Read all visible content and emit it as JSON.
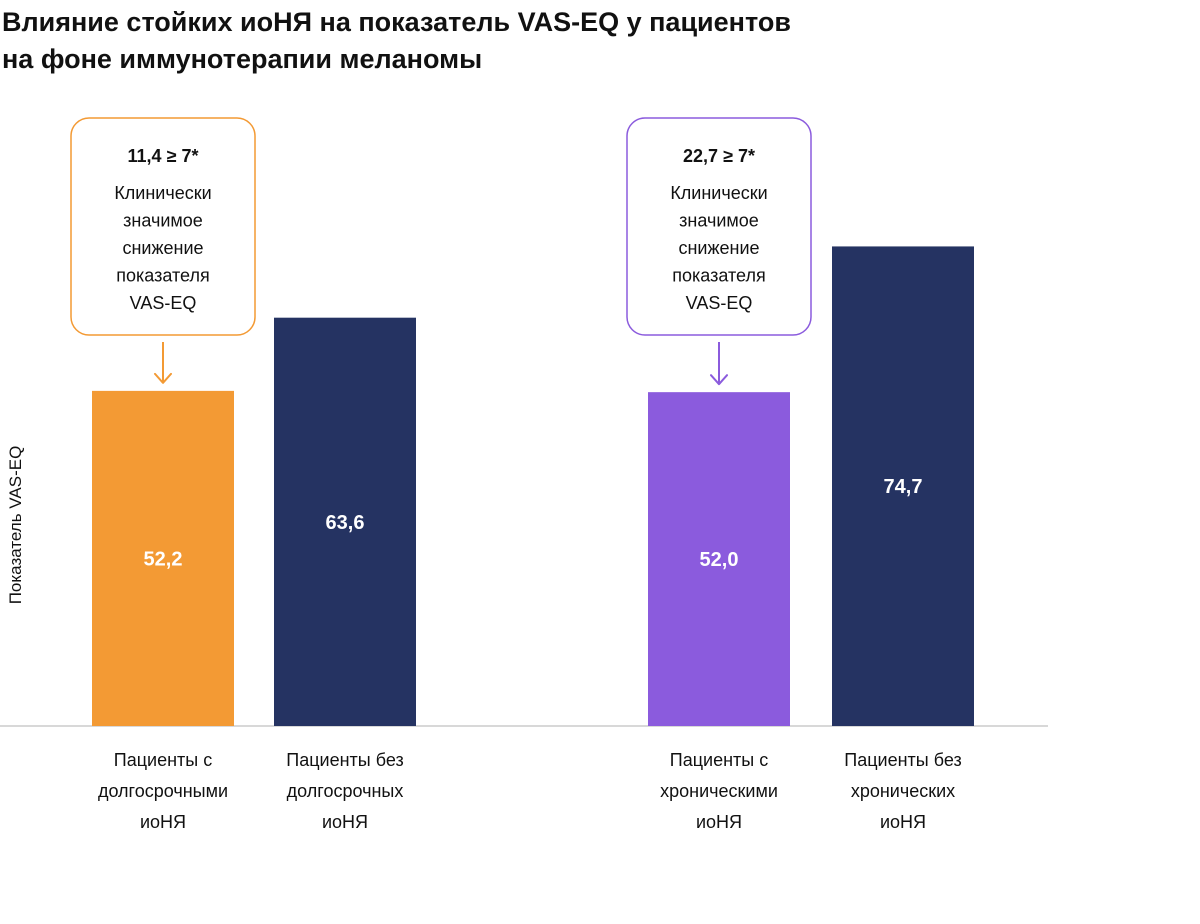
{
  "title_lines": [
    "Влияние стойких иоНЯ на показатель VAS-EQ у пациентов",
    "на фоне иммунотерапии меланомы"
  ],
  "colors": {
    "orange": "#F39A34",
    "purple": "#8B5BDD",
    "navy": "#253362",
    "axis": "#cccccc"
  },
  "chart_data": {
    "type": "bar",
    "ylabel": "Показатель VAS-EQ",
    "ylim": [
      0,
      100
    ],
    "grid": false,
    "bars": [
      {
        "value": 52.2,
        "label": "52,2",
        "color": "#F39A34",
        "category_lines": [
          "Пациенты с",
          "долгосрочными",
          "иоНЯ"
        ]
      },
      {
        "value": 63.6,
        "label": "63,6",
        "color": "#253362",
        "category_lines": [
          "Пациенты без",
          "долгосрочных",
          "иоНЯ"
        ]
      },
      {
        "value": 52.0,
        "label": "52,0",
        "color": "#8B5BDD",
        "category_lines": [
          "Пациенты с",
          "хроническими",
          "иоНЯ"
        ]
      },
      {
        "value": 74.7,
        "label": "74,7",
        "color": "#253362",
        "category_lines": [
          "Пациенты без",
          "хронических",
          "иоНЯ"
        ]
      }
    ],
    "annotations": [
      {
        "target_bar": 0,
        "color": "#F39A34",
        "headline": "11,4 ≥ 7*",
        "text_lines": [
          "Клинически",
          "значимое",
          "снижение",
          "показателя",
          "VAS-EQ"
        ]
      },
      {
        "target_bar": 2,
        "color": "#8B5BDD",
        "headline": "22,7 ≥ 7*",
        "text_lines": [
          "Клинически",
          "значимое",
          "снижение",
          "показателя",
          "VAS-EQ"
        ]
      }
    ]
  }
}
